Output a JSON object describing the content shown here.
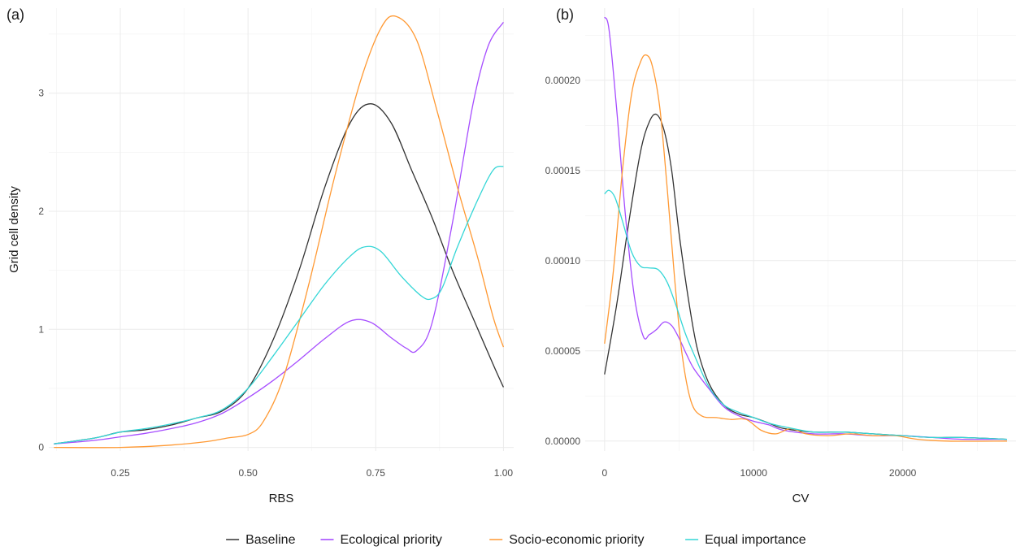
{
  "colors": {
    "Baseline": "#333333",
    "Ecological priority": "#a64dff",
    "Socio-economic priority": "#ff9933",
    "Equal importance": "#33d6d6"
  },
  "legend": {
    "items": [
      "Baseline",
      "Ecological priority",
      "Socio-economic priority",
      "Equal importance"
    ]
  },
  "chart_data": [
    {
      "type": "line",
      "panel": "(a)",
      "xlabel": "RBS",
      "ylabel": "Grid cell density",
      "xlim": [
        0.11,
        1.02
      ],
      "ylim": [
        -0.03,
        3.72
      ],
      "xticks": [
        0.25,
        0.5,
        0.75,
        1.0
      ],
      "xticklabels": [
        "0.25",
        "0.50",
        "0.75",
        "1.00"
      ],
      "yticks": [
        0,
        1,
        2,
        3
      ],
      "yticklabels": [
        "0",
        "1",
        "2",
        "3"
      ],
      "grid": true,
      "series": [
        {
          "name": "Baseline",
          "x": [
            0.12,
            0.2,
            0.25,
            0.3,
            0.35,
            0.4,
            0.45,
            0.5,
            0.55,
            0.6,
            0.65,
            0.7,
            0.74,
            0.78,
            0.82,
            0.86,
            0.9,
            0.94,
            0.98,
            1.0
          ],
          "y": [
            0.03,
            0.08,
            0.13,
            0.15,
            0.19,
            0.25,
            0.31,
            0.5,
            0.92,
            1.5,
            2.2,
            2.75,
            2.91,
            2.75,
            2.35,
            1.95,
            1.5,
            1.1,
            0.7,
            0.51
          ]
        },
        {
          "name": "Ecological priority",
          "x": [
            0.12,
            0.2,
            0.25,
            0.3,
            0.35,
            0.4,
            0.45,
            0.5,
            0.55,
            0.6,
            0.65,
            0.7,
            0.74,
            0.78,
            0.81,
            0.83,
            0.86,
            0.9,
            0.94,
            0.97,
            1.0
          ],
          "y": [
            0.03,
            0.06,
            0.09,
            0.12,
            0.16,
            0.21,
            0.29,
            0.42,
            0.57,
            0.74,
            0.92,
            1.07,
            1.06,
            0.93,
            0.84,
            0.82,
            1.05,
            1.9,
            2.9,
            3.4,
            3.6
          ]
        },
        {
          "name": "Socio-economic priority",
          "x": [
            0.12,
            0.25,
            0.35,
            0.42,
            0.46,
            0.5,
            0.53,
            0.57,
            0.62,
            0.67,
            0.72,
            0.76,
            0.79,
            0.83,
            0.87,
            0.91,
            0.95,
            0.98,
            1.0
          ],
          "y": [
            0.0,
            0.0,
            0.02,
            0.05,
            0.08,
            0.11,
            0.22,
            0.6,
            1.4,
            2.3,
            3.1,
            3.55,
            3.65,
            3.45,
            2.85,
            2.2,
            1.6,
            1.1,
            0.85
          ]
        },
        {
          "name": "Equal importance",
          "x": [
            0.12,
            0.2,
            0.25,
            0.3,
            0.35,
            0.4,
            0.45,
            0.5,
            0.55,
            0.6,
            0.65,
            0.7,
            0.73,
            0.76,
            0.8,
            0.84,
            0.86,
            0.88,
            0.91,
            0.95,
            0.98,
            1.0
          ],
          "y": [
            0.03,
            0.08,
            0.13,
            0.16,
            0.2,
            0.25,
            0.32,
            0.5,
            0.78,
            1.08,
            1.38,
            1.62,
            1.7,
            1.66,
            1.45,
            1.28,
            1.26,
            1.35,
            1.7,
            2.1,
            2.35,
            2.38
          ]
        }
      ]
    },
    {
      "type": "line",
      "panel": "(b)",
      "xlabel": "CV",
      "ylabel": "",
      "xlim": [
        -1300,
        27600
      ],
      "ylim": [
        -5.5e-06,
        0.00024
      ],
      "xticks": [
        0,
        10000,
        20000
      ],
      "xticklabels": [
        "0",
        "10000",
        "20000"
      ],
      "yticks": [
        0,
        5e-05,
        0.0001,
        0.00015,
        0.0002
      ],
      "yticklabels": [
        "0.00000",
        "0.00005",
        "0.00010",
        "0.00015",
        "0.00020"
      ],
      "grid": true,
      "series": [
        {
          "name": "Baseline",
          "x": [
            0,
            800,
            1600,
            2400,
            3000,
            3500,
            4000,
            4500,
            5000,
            5600,
            6200,
            7000,
            8000,
            9000,
            10000,
            11000,
            12000,
            14000,
            16000,
            18000,
            20000,
            22000,
            24000,
            27000
          ],
          "y": [
            3.7e-05,
            7.5e-05,
            0.00012,
            0.00016,
            0.000177,
            0.000181,
            0.000172,
            0.00015,
            0.000115,
            8e-05,
            5.2e-05,
            3.2e-05,
            2e-05,
            1.5e-05,
            1.3e-05,
            1e-05,
            7e-06,
            5e-06,
            5e-06,
            4e-06,
            3e-06,
            2e-06,
            2e-06,
            1e-06
          ]
        },
        {
          "name": "Ecological priority",
          "x": [
            0,
            300,
            800,
            1400,
            2000,
            2600,
            3000,
            3500,
            4000,
            4500,
            5000,
            5500,
            6000,
            7000,
            8000,
            9000,
            10000,
            11000,
            12000,
            14000,
            16000,
            18000,
            20000,
            22000,
            24000,
            27000
          ],
          "y": [
            0.000235,
            0.000228,
            0.000185,
            0.000125,
            8e-05,
            5.8e-05,
            5.9e-05,
            6.2e-05,
            6.6e-05,
            6.4e-05,
            5.7e-05,
            4.8e-05,
            4e-05,
            2.9e-05,
            1.9e-05,
            1.4e-05,
            1.1e-05,
            9e-06,
            6e-06,
            4e-06,
            4e-06,
            3e-06,
            3e-06,
            2e-06,
            1e-06,
            1e-06
          ]
        },
        {
          "name": "Socio-economic priority",
          "x": [
            0,
            600,
            1200,
            1800,
            2400,
            2800,
            3200,
            3700,
            4200,
            4700,
            5200,
            5800,
            6500,
            7500,
            8500,
            9500,
            10500,
            11500,
            12500,
            13500,
            15000,
            16500,
            18000,
            19500,
            21000,
            23000,
            27000
          ],
          "y": [
            5.4e-05,
            9.5e-05,
            0.00015,
            0.000192,
            0.00021,
            0.000214,
            0.000208,
            0.000185,
            0.00014,
            9e-05,
            4.8e-05,
            2.2e-05,
            1.4e-05,
            1.3e-05,
            1.2e-05,
            1.2e-05,
            6e-06,
            4e-06,
            7e-06,
            4e-06,
            3e-06,
            4e-06,
            3e-06,
            3e-06,
            1e-06,
            0.0,
            0.0
          ]
        },
        {
          "name": "Equal importance",
          "x": [
            0,
            300,
            700,
            1200,
            1800,
            2400,
            3000,
            3600,
            4200,
            4800,
            5400,
            6000,
            7000,
            8000,
            9000,
            10000,
            11000,
            12000,
            14000,
            16000,
            18000,
            20000,
            22000,
            24000,
            27000
          ],
          "y": [
            0.000137,
            0.000139,
            0.000135,
            0.000122,
            0.000105,
            9.7e-05,
            9.6e-05,
            9.5e-05,
            8.8e-05,
            7.5e-05,
            6e-05,
            4.8e-05,
            3e-05,
            2e-05,
            1.6e-05,
            1.3e-05,
            1e-05,
            8e-06,
            5e-06,
            5e-06,
            4e-06,
            3e-06,
            2e-06,
            2e-06,
            1e-06
          ]
        }
      ]
    }
  ]
}
